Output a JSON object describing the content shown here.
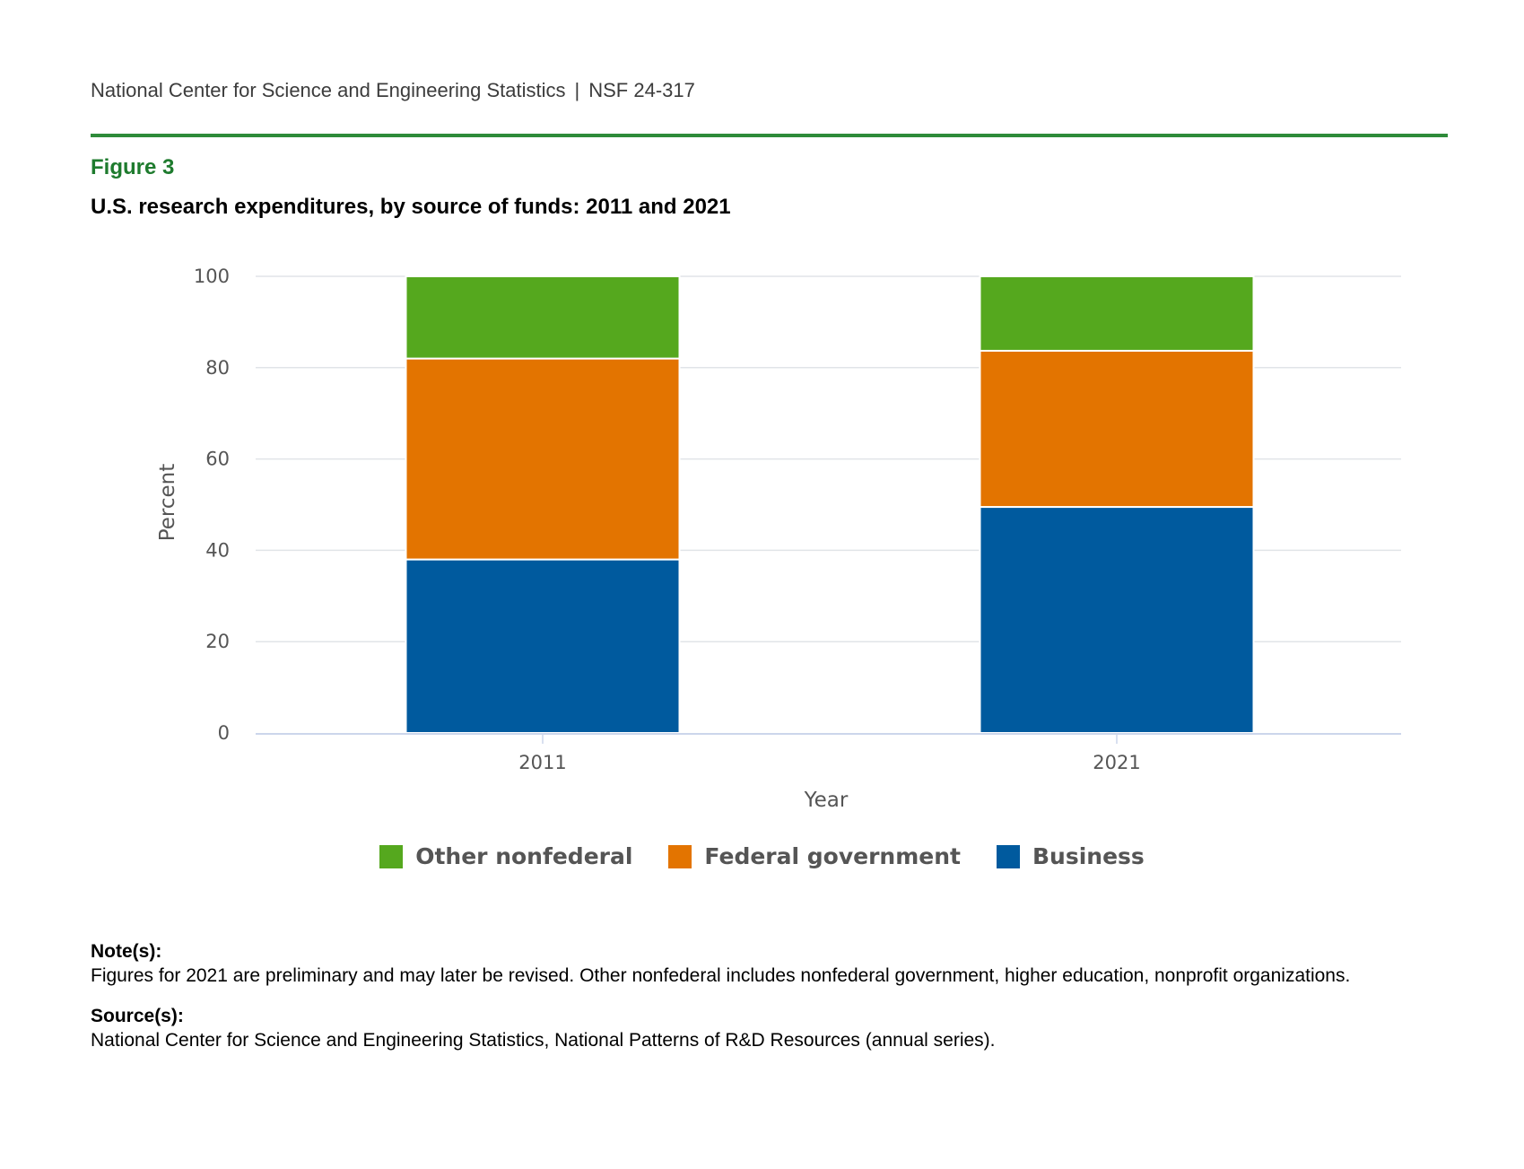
{
  "header": {
    "org": "National Center for Science and Engineering Statistics",
    "separator": "|",
    "report_id": "NSF 24-317"
  },
  "figure": {
    "label": "Figure 3",
    "title": "U.S. research expenditures, by source of funds: 2011 and 2021"
  },
  "colors": {
    "business": "#005a9e",
    "federal": "#e37400",
    "other": "#55a81e",
    "rule": "#2e8b3a",
    "figure_label": "#1e7b2e"
  },
  "chart_data": {
    "type": "bar",
    "stacked": true,
    "categories": [
      "2011",
      "2021"
    ],
    "series": [
      {
        "name": "Business",
        "key": "business",
        "values": [
          38,
          49.5
        ]
      },
      {
        "name": "Federal government",
        "key": "federal",
        "values": [
          44,
          34.2
        ]
      },
      {
        "name": "Other nonfederal",
        "key": "other",
        "values": [
          18,
          16.3
        ]
      }
    ],
    "xlabel": "Year",
    "ylabel": "Percent",
    "ylim": [
      0,
      100
    ],
    "yticks": [
      0,
      20,
      40,
      60,
      80,
      100
    ],
    "grid": true,
    "legend_position": "bottom",
    "legend_order": [
      "Other nonfederal",
      "Federal government",
      "Business"
    ]
  },
  "notes": {
    "notes_heading": "Note(s):",
    "notes_text": "Figures for 2021 are preliminary and may later be revised. Other nonfederal includes nonfederal government, higher education, nonprofit organizations.",
    "source_heading": "Source(s):",
    "source_text": "National Center for Science and Engineering Statistics, National Patterns of R&D Resources (annual series)."
  }
}
